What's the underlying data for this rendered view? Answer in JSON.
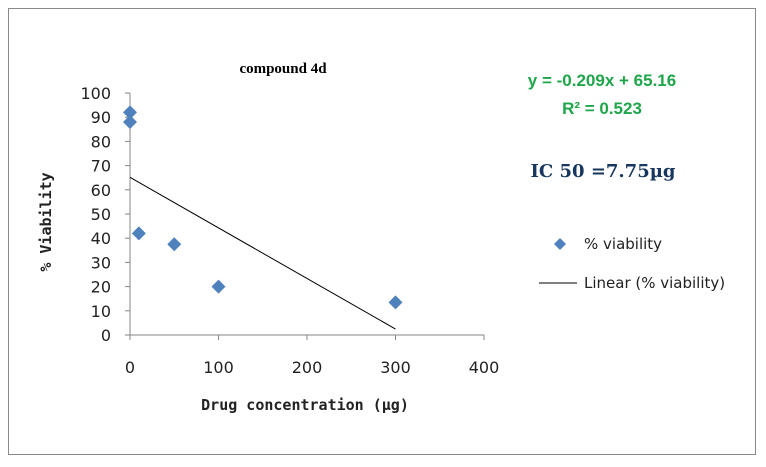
{
  "chart_data": {
    "type": "scatter",
    "title": "compound 4d",
    "xlabel": "Drug concentration (µg)",
    "ylabel": "% Viability",
    "xlim": [
      0,
      400
    ],
    "ylim": [
      0,
      100
    ],
    "x_ticks": [
      "0",
      "100",
      "200",
      "300",
      "400"
    ],
    "y_ticks": [
      "0",
      "10",
      "20",
      "30",
      "40",
      "50",
      "60",
      "70",
      "80",
      "90",
      "100"
    ],
    "grid": false,
    "legend_position": "right",
    "series": [
      {
        "name": "% viability",
        "marker": "diamond",
        "color": "#4f81bd",
        "points": [
          {
            "x": 0,
            "y": 92
          },
          {
            "x": 0,
            "y": 88
          },
          {
            "x": 10,
            "y": 42
          },
          {
            "x": 50,
            "y": 37.5
          },
          {
            "x": 100,
            "y": 20
          },
          {
            "x": 300,
            "y": 13.5
          }
        ]
      }
    ],
    "trendline": {
      "name": "Linear (% viability)",
      "color": "#000000",
      "slope": -0.209,
      "intercept": 65.16,
      "x_range": [
        0,
        300
      ]
    },
    "annotations": {
      "equation": "y = -0.209x + 65.16",
      "r_squared": "R² = 0.523",
      "ic50": "IC 50 =7.75µg"
    },
    "colors": {
      "equation": "#1fa64a",
      "ic50": "#17375e"
    }
  }
}
